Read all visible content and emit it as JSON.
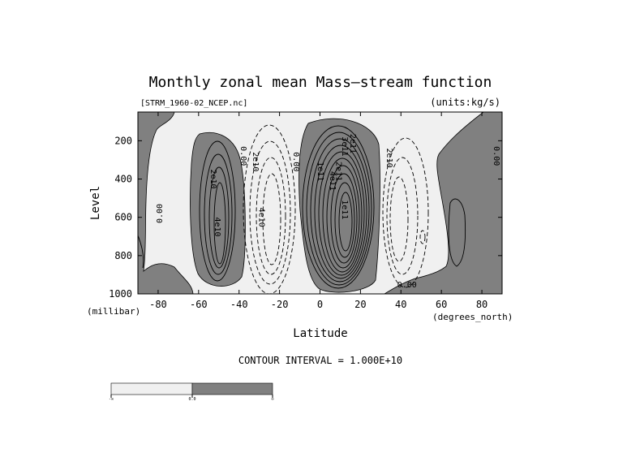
{
  "chart_data": {
    "type": "contour",
    "title": "Monthly zonal mean Mass—stream function",
    "file_label": "[STRM_1960-02_NCEP.nc]",
    "units_label": "(units:kg/s)",
    "xlabel": "Latitude",
    "x_units": "(degrees_north)",
    "ylabel": "Level",
    "y_units": "(millibar)",
    "xlim": [
      -90,
      90
    ],
    "ylim": [
      1000,
      50
    ],
    "y_inverted": true,
    "x_ticks": [
      -80,
      -60,
      -40,
      -20,
      0,
      20,
      40,
      60,
      80
    ],
    "y_ticks": [
      200,
      400,
      600,
      800,
      1000
    ],
    "contour_interval_text": "CONTOUR INTERVAL = 1.000E+10",
    "contour_interval": 10000000000,
    "shading": {
      "negative": "#f0f0f0",
      "positive": "#808080"
    },
    "contour_labels": [
      {
        "text": "0.00",
        "lat": -79,
        "p": 580,
        "rot": -90
      },
      {
        "text": "2e10",
        "lat": -53,
        "p": 400,
        "rot": 90
      },
      {
        "text": "4e10",
        "lat": -51,
        "p": 650,
        "rot": 90
      },
      {
        "text": "0.00",
        "lat": -38,
        "p": 280,
        "rot": 90
      },
      {
        "text": "2e10",
        "lat": -32,
        "p": 310,
        "rot": 90
      },
      {
        "text": "4e10",
        "lat": -29,
        "p": 600,
        "rot": 90
      },
      {
        "text": "0.00",
        "lat": -12,
        "p": 310,
        "rot": 90
      },
      {
        "text": "1e11",
        "lat": 0,
        "p": 360,
        "rot": 90
      },
      {
        "text": "1e11",
        "lat": 12,
        "p": 560,
        "rot": 90
      },
      {
        "text": "4e11",
        "lat": 6,
        "p": 410,
        "rot": 90
      },
      {
        "text": "2e11",
        "lat": 9,
        "p": 360,
        "rot": 90
      },
      {
        "text": "3e11",
        "lat": 12,
        "p": 230,
        "rot": 90
      },
      {
        "text": "2e11",
        "lat": 16,
        "p": 215,
        "rot": 90
      },
      {
        "text": "2e10",
        "lat": 34,
        "p": 290,
        "rot": 90
      },
      {
        "text": "0.00",
        "lat": 87,
        "p": 280,
        "rot": 90
      },
      {
        "text": "0.00",
        "lat": 43,
        "p": 955,
        "rot": 0
      }
    ],
    "colorbar": {
      "segments": [
        {
          "label": "-∞",
          "color": "#f0f0f0"
        },
        {
          "label": "0.0",
          "color": "#808080"
        }
      ],
      "end_label": "∞"
    }
  }
}
